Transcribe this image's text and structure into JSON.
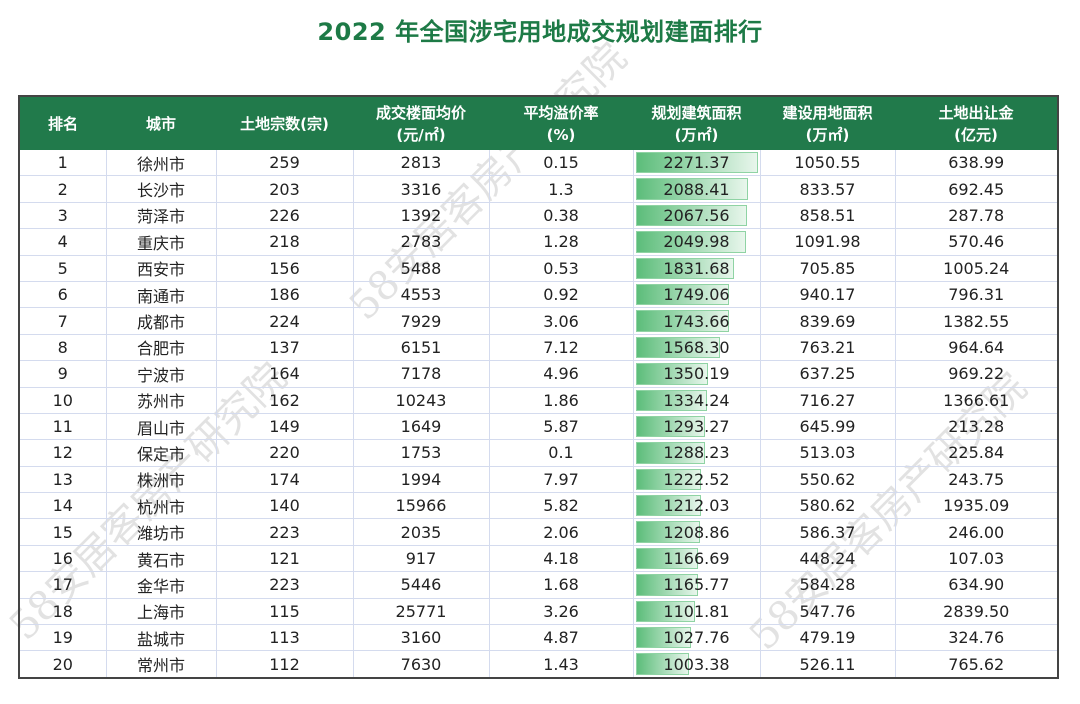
{
  "title": "2022 年全国涉宅用地成交规划建面排行",
  "watermark": "58安居客房产研究院",
  "colors": {
    "header_bg": "#217a4b",
    "title": "#1d7a46",
    "data_bar": "#5cbd7a"
  },
  "columns": [
    {
      "line1": "排名",
      "line2": ""
    },
    {
      "line1": "城市",
      "line2": ""
    },
    {
      "line1": "土地宗数(宗)",
      "line2": ""
    },
    {
      "line1": "成交楼面均价",
      "line2": "(元/㎡)"
    },
    {
      "line1": "平均溢价率",
      "line2": "(%)"
    },
    {
      "line1": "规划建筑面积",
      "line2": "(万㎡)"
    },
    {
      "line1": "建设用地面积",
      "line2": "(万㎡)"
    },
    {
      "line1": "土地出让金",
      "line2": "(亿元)"
    }
  ],
  "rows": [
    [
      "1",
      "徐州市",
      "259",
      "2813",
      "0.15",
      "2271.37",
      "1050.55",
      "638.99"
    ],
    [
      "2",
      "长沙市",
      "203",
      "3316",
      "1.3",
      "2088.41",
      "833.57",
      "692.45"
    ],
    [
      "3",
      "菏泽市",
      "226",
      "1392",
      "0.38",
      "2067.56",
      "858.51",
      "287.78"
    ],
    [
      "4",
      "重庆市",
      "218",
      "2783",
      "1.28",
      "2049.98",
      "1091.98",
      "570.46"
    ],
    [
      "5",
      "西安市",
      "156",
      "5488",
      "0.53",
      "1831.68",
      "705.85",
      "1005.24"
    ],
    [
      "6",
      "南通市",
      "186",
      "4553",
      "0.92",
      "1749.06",
      "940.17",
      "796.31"
    ],
    [
      "7",
      "成都市",
      "224",
      "7929",
      "3.06",
      "1743.66",
      "839.69",
      "1382.55"
    ],
    [
      "8",
      "合肥市",
      "137",
      "6151",
      "7.12",
      "1568.30",
      "763.21",
      "964.64"
    ],
    [
      "9",
      "宁波市",
      "164",
      "7178",
      "4.96",
      "1350.19",
      "637.25",
      "969.22"
    ],
    [
      "10",
      "苏州市",
      "162",
      "10243",
      "1.86",
      "1334.24",
      "716.27",
      "1366.61"
    ],
    [
      "11",
      "眉山市",
      "149",
      "1649",
      "5.87",
      "1293.27",
      "645.99",
      "213.28"
    ],
    [
      "12",
      "保定市",
      "220",
      "1753",
      "0.1",
      "1288.23",
      "513.03",
      "225.84"
    ],
    [
      "13",
      "株洲市",
      "174",
      "1994",
      "7.97",
      "1222.52",
      "550.62",
      "243.75"
    ],
    [
      "14",
      "杭州市",
      "140",
      "15966",
      "5.82",
      "1212.03",
      "580.62",
      "1935.09"
    ],
    [
      "15",
      "潍坊市",
      "223",
      "2035",
      "2.06",
      "1208.86",
      "586.37",
      "246.00"
    ],
    [
      "16",
      "黄石市",
      "121",
      "917",
      "4.18",
      "1166.69",
      "448.24",
      "107.03"
    ],
    [
      "17",
      "金华市",
      "223",
      "5446",
      "1.68",
      "1165.77",
      "584.28",
      "634.90"
    ],
    [
      "18",
      "上海市",
      "115",
      "25771",
      "3.26",
      "1101.81",
      "547.76",
      "2839.50"
    ],
    [
      "19",
      "盐城市",
      "113",
      "3160",
      "4.87",
      "1027.76",
      "479.19",
      "324.76"
    ],
    [
      "20",
      "常州市",
      "112",
      "7630",
      "1.43",
      "1003.38",
      "526.11",
      "765.62"
    ]
  ]
}
